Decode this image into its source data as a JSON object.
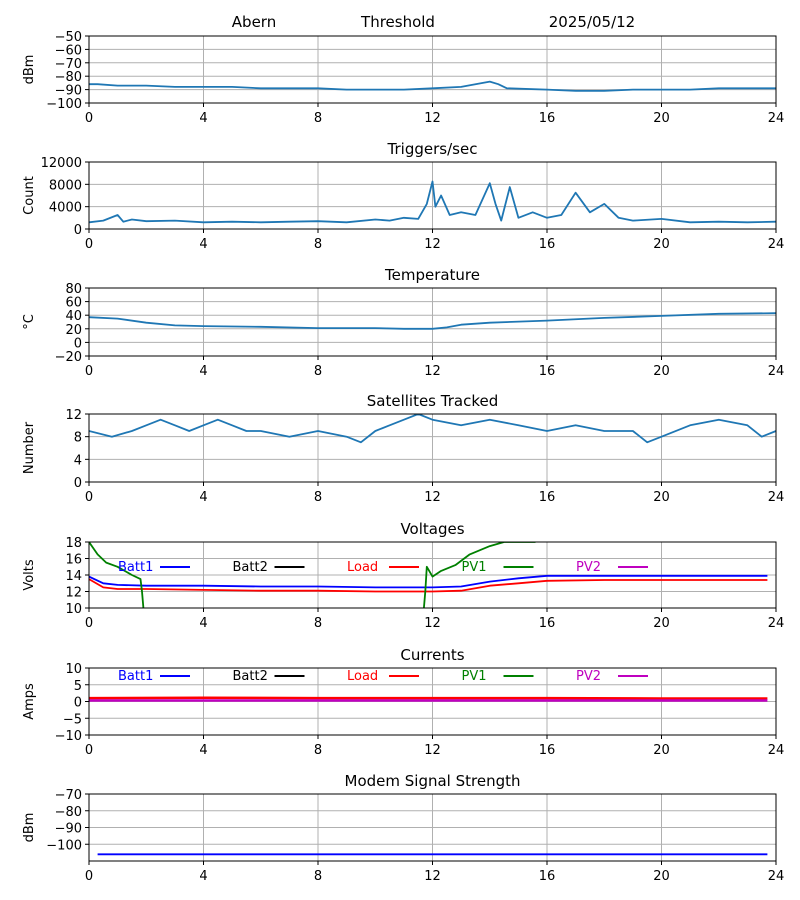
{
  "header": {
    "station": "Abern",
    "label": "Threshold",
    "date": "2025/05/12"
  },
  "colors": {
    "series": "#1f77b4",
    "grid": "#b0b0b0",
    "batt1": "#0000ff",
    "batt2": "#000000",
    "load": "#ff0000",
    "pv1": "#008000",
    "pv2": "#bf00bf",
    "modem": "#0000ff"
  },
  "chart_data": [
    {
      "id": "threshold",
      "type": "line",
      "title": "",
      "xlabel": "",
      "ylabel": "dBm",
      "xlim": [
        0,
        24
      ],
      "ylim": [
        -100,
        -50
      ],
      "xticks": [
        "0",
        "4",
        "8",
        "12",
        "16",
        "20",
        "24"
      ],
      "yticks": [
        "−50",
        "−60",
        "−70",
        "−80",
        "−90",
        "−100"
      ],
      "series": [
        {
          "x": [
            0,
            0.3,
            1,
            2,
            3,
            4,
            5,
            6,
            7,
            8,
            9,
            10,
            11,
            12,
            13,
            13.5,
            14,
            14.3,
            14.6,
            16,
            17,
            18,
            19,
            20,
            21,
            22,
            23,
            24
          ],
          "y": [
            -86,
            -86,
            -87,
            -87,
            -88,
            -88,
            -88,
            -89,
            -89,
            -89,
            -90,
            -90,
            -90,
            -89,
            -88,
            -86,
            -84,
            -86,
            -89,
            -90,
            -91,
            -91,
            -90,
            -90,
            -90,
            -89,
            -89,
            -89
          ]
        }
      ]
    },
    {
      "id": "triggers",
      "type": "line",
      "title": "Triggers/sec",
      "xlabel": "",
      "ylabel": "Count",
      "xlim": [
        0,
        24
      ],
      "ylim": [
        0,
        12000
      ],
      "xticks": [
        "0",
        "4",
        "8",
        "12",
        "16",
        "20",
        "24"
      ],
      "yticks": [
        "12000",
        "8000",
        "4000",
        "0"
      ],
      "series": [
        {
          "x": [
            0,
            0.5,
            1,
            1.2,
            1.5,
            2,
            3,
            4,
            5,
            6,
            7,
            8,
            9,
            10,
            10.5,
            11,
            11.5,
            11.8,
            12,
            12.1,
            12.3,
            12.6,
            13,
            13.5,
            14,
            14.2,
            14.4,
            14.7,
            15,
            15.5,
            16,
            16.5,
            17,
            17.5,
            18,
            18.5,
            19,
            20,
            21,
            22,
            23,
            24
          ],
          "y": [
            1200,
            1500,
            2500,
            1300,
            1700,
            1400,
            1500,
            1200,
            1300,
            1200,
            1300,
            1400,
            1200,
            1700,
            1500,
            2000,
            1800,
            4500,
            8500,
            4000,
            6000,
            2500,
            3000,
            2500,
            8200,
            4500,
            1500,
            7500,
            2000,
            3000,
            2000,
            2500,
            6500,
            3000,
            4500,
            2000,
            1500,
            1800,
            1200,
            1300,
            1200,
            1300
          ]
        }
      ]
    },
    {
      "id": "temperature",
      "type": "line",
      "title": "Temperature",
      "xlabel": "",
      "ylabel": "°C",
      "xlim": [
        0,
        24
      ],
      "ylim": [
        -20,
        80
      ],
      "xticks": [
        "0",
        "4",
        "8",
        "12",
        "16",
        "20",
        "24"
      ],
      "yticks": [
        "80",
        "60",
        "40",
        "20",
        "0",
        "−20"
      ],
      "series": [
        {
          "x": [
            0,
            1,
            2,
            3,
            4,
            6,
            8,
            10,
            11,
            12,
            12.5,
            13,
            14,
            16,
            18,
            20,
            22,
            24
          ],
          "y": [
            37,
            35,
            29,
            25,
            24,
            23,
            21,
            21,
            20,
            20,
            22,
            26,
            29,
            32,
            36,
            39,
            42,
            43
          ]
        }
      ]
    },
    {
      "id": "satellites",
      "type": "line",
      "title": "Satellites Tracked",
      "xlabel": "",
      "ylabel": "Number",
      "xlim": [
        0,
        24
      ],
      "ylim": [
        0,
        12
      ],
      "xticks": [
        "0",
        "4",
        "8",
        "12",
        "16",
        "20",
        "24"
      ],
      "yticks": [
        "12",
        "8",
        "4",
        "0"
      ],
      "series": [
        {
          "x": [
            0,
            0.8,
            1.5,
            2,
            2.5,
            3,
            3.5,
            4,
            4.5,
            5,
            5.5,
            6,
            7,
            8,
            9,
            9.5,
            10,
            10.5,
            11,
            11.5,
            12,
            13,
            14,
            15,
            16,
            17,
            18,
            19,
            19.5,
            20,
            21,
            22,
            23,
            23.5,
            24
          ],
          "y": [
            9,
            8,
            9,
            10,
            11,
            10,
            9,
            10,
            11,
            10,
            9,
            9,
            8,
            9,
            8,
            7,
            9,
            10,
            11,
            12,
            11,
            10,
            11,
            10,
            9,
            10,
            9,
            9,
            7,
            8,
            10,
            11,
            10,
            8,
            9
          ]
        }
      ]
    },
    {
      "id": "voltages",
      "type": "line",
      "title": "Voltages",
      "xlabel": "",
      "ylabel": "Volts",
      "xlim": [
        0,
        24
      ],
      "ylim": [
        10,
        18
      ],
      "xticks": [
        "0",
        "4",
        "8",
        "12",
        "16",
        "20",
        "24"
      ],
      "yticks": [
        "18",
        "16",
        "14",
        "12",
        "10"
      ],
      "legend": [
        "Batt1",
        "Batt2",
        "Load",
        "PV1",
        "PV2"
      ],
      "series": [
        {
          "name": "Batt1",
          "x": [
            0,
            0.5,
            1,
            2,
            4,
            6,
            8,
            10,
            12,
            13,
            14,
            15,
            16,
            18,
            20,
            22,
            23.7
          ],
          "y": [
            13.8,
            13.0,
            12.8,
            12.7,
            12.7,
            12.6,
            12.6,
            12.5,
            12.5,
            12.6,
            13.2,
            13.6,
            13.9,
            13.9,
            13.9,
            13.9,
            13.9
          ]
        },
        {
          "name": "Batt2",
          "x": [],
          "y": []
        },
        {
          "name": "Load",
          "x": [
            0,
            0.5,
            1,
            2,
            4,
            6,
            8,
            10,
            12,
            13,
            14,
            15,
            16,
            18,
            20,
            22,
            23.7
          ],
          "y": [
            13.5,
            12.5,
            12.3,
            12.3,
            12.2,
            12.1,
            12.1,
            12.0,
            12.0,
            12.1,
            12.7,
            13.0,
            13.3,
            13.4,
            13.4,
            13.4,
            13.4
          ]
        },
        {
          "name": "PV1",
          "x": [
            0,
            0.3,
            0.6,
            1,
            1.5,
            1.8,
            1.85,
            1.9,
            null,
            11.7,
            11.75,
            11.8,
            12.0,
            12.3,
            12.8,
            13.3,
            14.0,
            14.5,
            15.0,
            15.6
          ],
          "y": [
            18,
            16.5,
            15.5,
            15.0,
            14.0,
            13.5,
            12.0,
            10,
            null,
            10,
            12.0,
            15.0,
            13.8,
            14.5,
            15.2,
            16.5,
            17.5,
            18.0,
            18.0,
            18.0
          ]
        },
        {
          "name": "PV2",
          "x": [],
          "y": []
        }
      ]
    },
    {
      "id": "currents",
      "type": "line",
      "title": "Currents",
      "xlabel": "",
      "ylabel": "Amps",
      "xlim": [
        0,
        24
      ],
      "ylim": [
        -10,
        10
      ],
      "xticks": [
        "0",
        "4",
        "8",
        "12",
        "16",
        "20",
        "24"
      ],
      "yticks": [
        "10",
        "5",
        "0",
        "−5",
        "−10"
      ],
      "legend": [
        "Batt1",
        "Batt2",
        "Load",
        "PV1",
        "PV2"
      ],
      "series": [
        {
          "name": "Batt1",
          "x": [],
          "y": []
        },
        {
          "name": "Batt2",
          "x": [],
          "y": []
        },
        {
          "name": "Load",
          "x": [
            0,
            4,
            8,
            12,
            16,
            20,
            23.7
          ],
          "y": [
            1.0,
            1.1,
            1.0,
            1.0,
            1.0,
            0.9,
            0.9
          ]
        },
        {
          "name": "PV1",
          "x": [],
          "y": []
        },
        {
          "name": "PV2",
          "x": [
            0,
            23.7
          ],
          "y": [
            0.3,
            0.3
          ]
        }
      ]
    },
    {
      "id": "modem",
      "type": "line",
      "title": "Modem Signal Strength",
      "xlabel": "",
      "ylabel": "dBm",
      "xlim": [
        0,
        24
      ],
      "ylim": [
        -110,
        -70
      ],
      "xticks": [
        "0",
        "4",
        "8",
        "12",
        "16",
        "20",
        "24"
      ],
      "yticks": [
        "−70",
        "−80",
        "−90",
        "−100"
      ],
      "series": [
        {
          "x": [
            0.3,
            23.7
          ],
          "y": [
            -106,
            -106
          ]
        }
      ]
    }
  ]
}
